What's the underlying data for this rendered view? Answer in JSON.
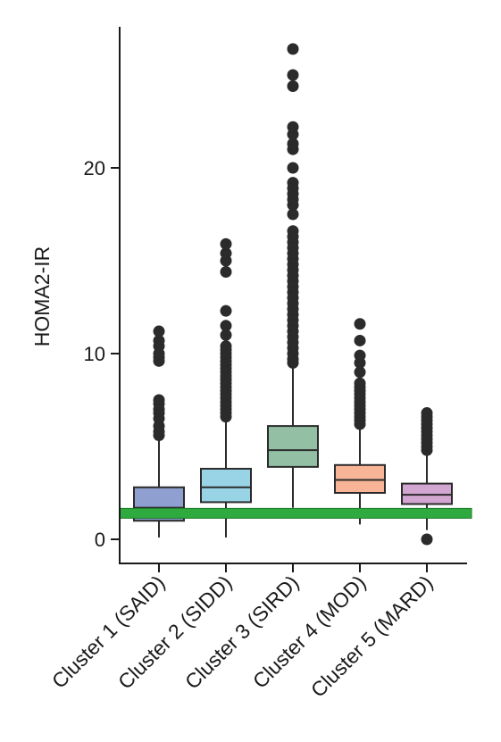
{
  "chart_data": {
    "type": "box",
    "title": "",
    "xlabel": "",
    "ylabel": "HOMA2-IR",
    "ylim": [
      -1.3,
      27.5
    ],
    "yticks": [
      0,
      10,
      20
    ],
    "grid": false,
    "legend": "none",
    "reference_line": {
      "y": 1.4,
      "color": "#2eaa3f",
      "edge_color": "#1d7a2a"
    },
    "categories": [
      "Cluster 1 (SAID)",
      "Cluster 2 (SIDD)",
      "Cluster 3 (SIRD)",
      "Cluster 4 (MOD)",
      "Cluster 5 (MARD)"
    ],
    "boxes": [
      {
        "color": "#8f9fcf",
        "whisker_low": 0.1,
        "q1": 1.0,
        "median": 1.7,
        "q3": 2.8,
        "whisker_high": 5.3,
        "outliers": [
          5.6,
          5.8,
          6.1,
          6.5,
          6.8,
          7.0,
          7.3,
          7.5,
          9.6,
          9.8,
          10.0,
          10.4,
          10.7,
          11.2
        ]
      },
      {
        "color": "#99d4e6",
        "whisker_low": 0.1,
        "q1": 2.0,
        "median": 2.8,
        "q3": 3.8,
        "whisker_high": 6.4,
        "outliers": [
          6.6,
          6.8,
          7.0,
          7.2,
          7.4,
          7.6,
          7.8,
          8.0,
          8.2,
          8.4,
          8.6,
          8.8,
          9.0,
          9.2,
          9.4,
          9.6,
          9.8,
          10.0,
          10.2,
          10.4,
          11.0,
          11.5,
          12.3,
          14.4,
          15.0,
          15.4,
          15.9
        ]
      },
      {
        "color": "#93c0a4",
        "whisker_low": 1.7,
        "q1": 3.9,
        "median": 4.8,
        "q3": 6.1,
        "whisker_high": 9.3,
        "outliers": [
          9.5,
          9.7,
          10.0,
          10.3,
          10.6,
          10.9,
          11.2,
          11.5,
          11.8,
          12.1,
          12.4,
          12.7,
          13.0,
          13.3,
          13.6,
          13.9,
          14.2,
          14.5,
          14.8,
          15.1,
          15.4,
          15.7,
          16.0,
          16.3,
          16.6,
          17.5,
          18.0,
          18.3,
          18.6,
          18.9,
          19.2,
          20.0,
          21.0,
          21.3,
          21.8,
          22.2,
          24.4,
          25.0,
          26.4
        ]
      },
      {
        "color": "#f8b497",
        "whisker_low": 0.8,
        "q1": 2.5,
        "median": 3.2,
        "q3": 4.0,
        "whisker_high": 6.0,
        "outliers": [
          6.2,
          6.4,
          6.6,
          6.8,
          7.0,
          7.2,
          7.4,
          7.6,
          7.8,
          8.0,
          8.2,
          8.4,
          9.0,
          9.5,
          9.9,
          10.7,
          11.6
        ]
      },
      {
        "color": "#d3a6d1",
        "whisker_low": 0.5,
        "q1": 1.9,
        "median": 2.4,
        "q3": 3.0,
        "whisker_high": 4.6,
        "outliers": [
          0.0,
          4.8,
          5.0,
          5.2,
          5.4,
          5.6,
          5.8,
          6.0,
          6.2,
          6.4,
          6.6,
          6.8
        ]
      }
    ]
  }
}
